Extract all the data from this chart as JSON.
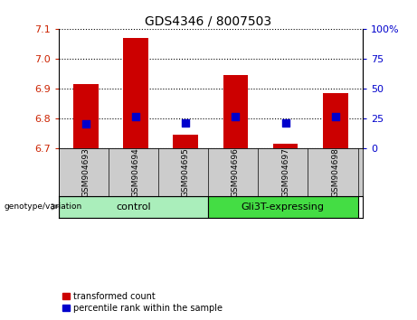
{
  "title": "GDS4346 / 8007503",
  "samples": [
    "GSM904693",
    "GSM904694",
    "GSM904695",
    "GSM904696",
    "GSM904697",
    "GSM904698"
  ],
  "transformed_counts": [
    6.915,
    7.07,
    6.745,
    6.945,
    6.715,
    6.885
  ],
  "percentile_ranks": [
    20,
    26,
    21,
    26,
    21,
    26
  ],
  "ylim_left": [
    6.7,
    7.1
  ],
  "ylim_right": [
    0,
    100
  ],
  "yticks_left": [
    6.7,
    6.8,
    6.9,
    7.0,
    7.1
  ],
  "yticks_right": [
    0,
    25,
    50,
    75,
    100
  ],
  "bar_color": "#cc0000",
  "dot_color": "#0000cc",
  "groups": [
    {
      "label": "control",
      "span": [
        0,
        2
      ],
      "color": "#aaeebb"
    },
    {
      "label": "Gli3T-expressing",
      "span": [
        3,
        5
      ],
      "color": "#44dd44"
    }
  ],
  "baseline": 6.7,
  "legend_red_label": "transformed count",
  "legend_blue_label": "percentile rank within the sample",
  "genotype_label": "genotype/variation",
  "tick_color_left": "#cc2200",
  "tick_color_right": "#0000cc",
  "bg_color": "#cccccc",
  "bar_width": 0.5
}
